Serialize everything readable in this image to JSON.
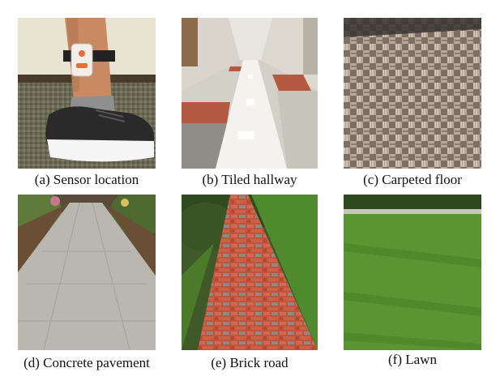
{
  "panels": [
    {
      "id": "a",
      "caption": "(a) Sensor location"
    },
    {
      "id": "b",
      "caption": "(b) Tiled hallway"
    },
    {
      "id": "c",
      "caption": "(c) Carpeted floor"
    },
    {
      "id": "d",
      "caption": "(d) Concrete pavement"
    },
    {
      "id": "e",
      "caption": "(e) Brick road"
    },
    {
      "id": "f",
      "caption": "(f) Lawn"
    }
  ]
}
